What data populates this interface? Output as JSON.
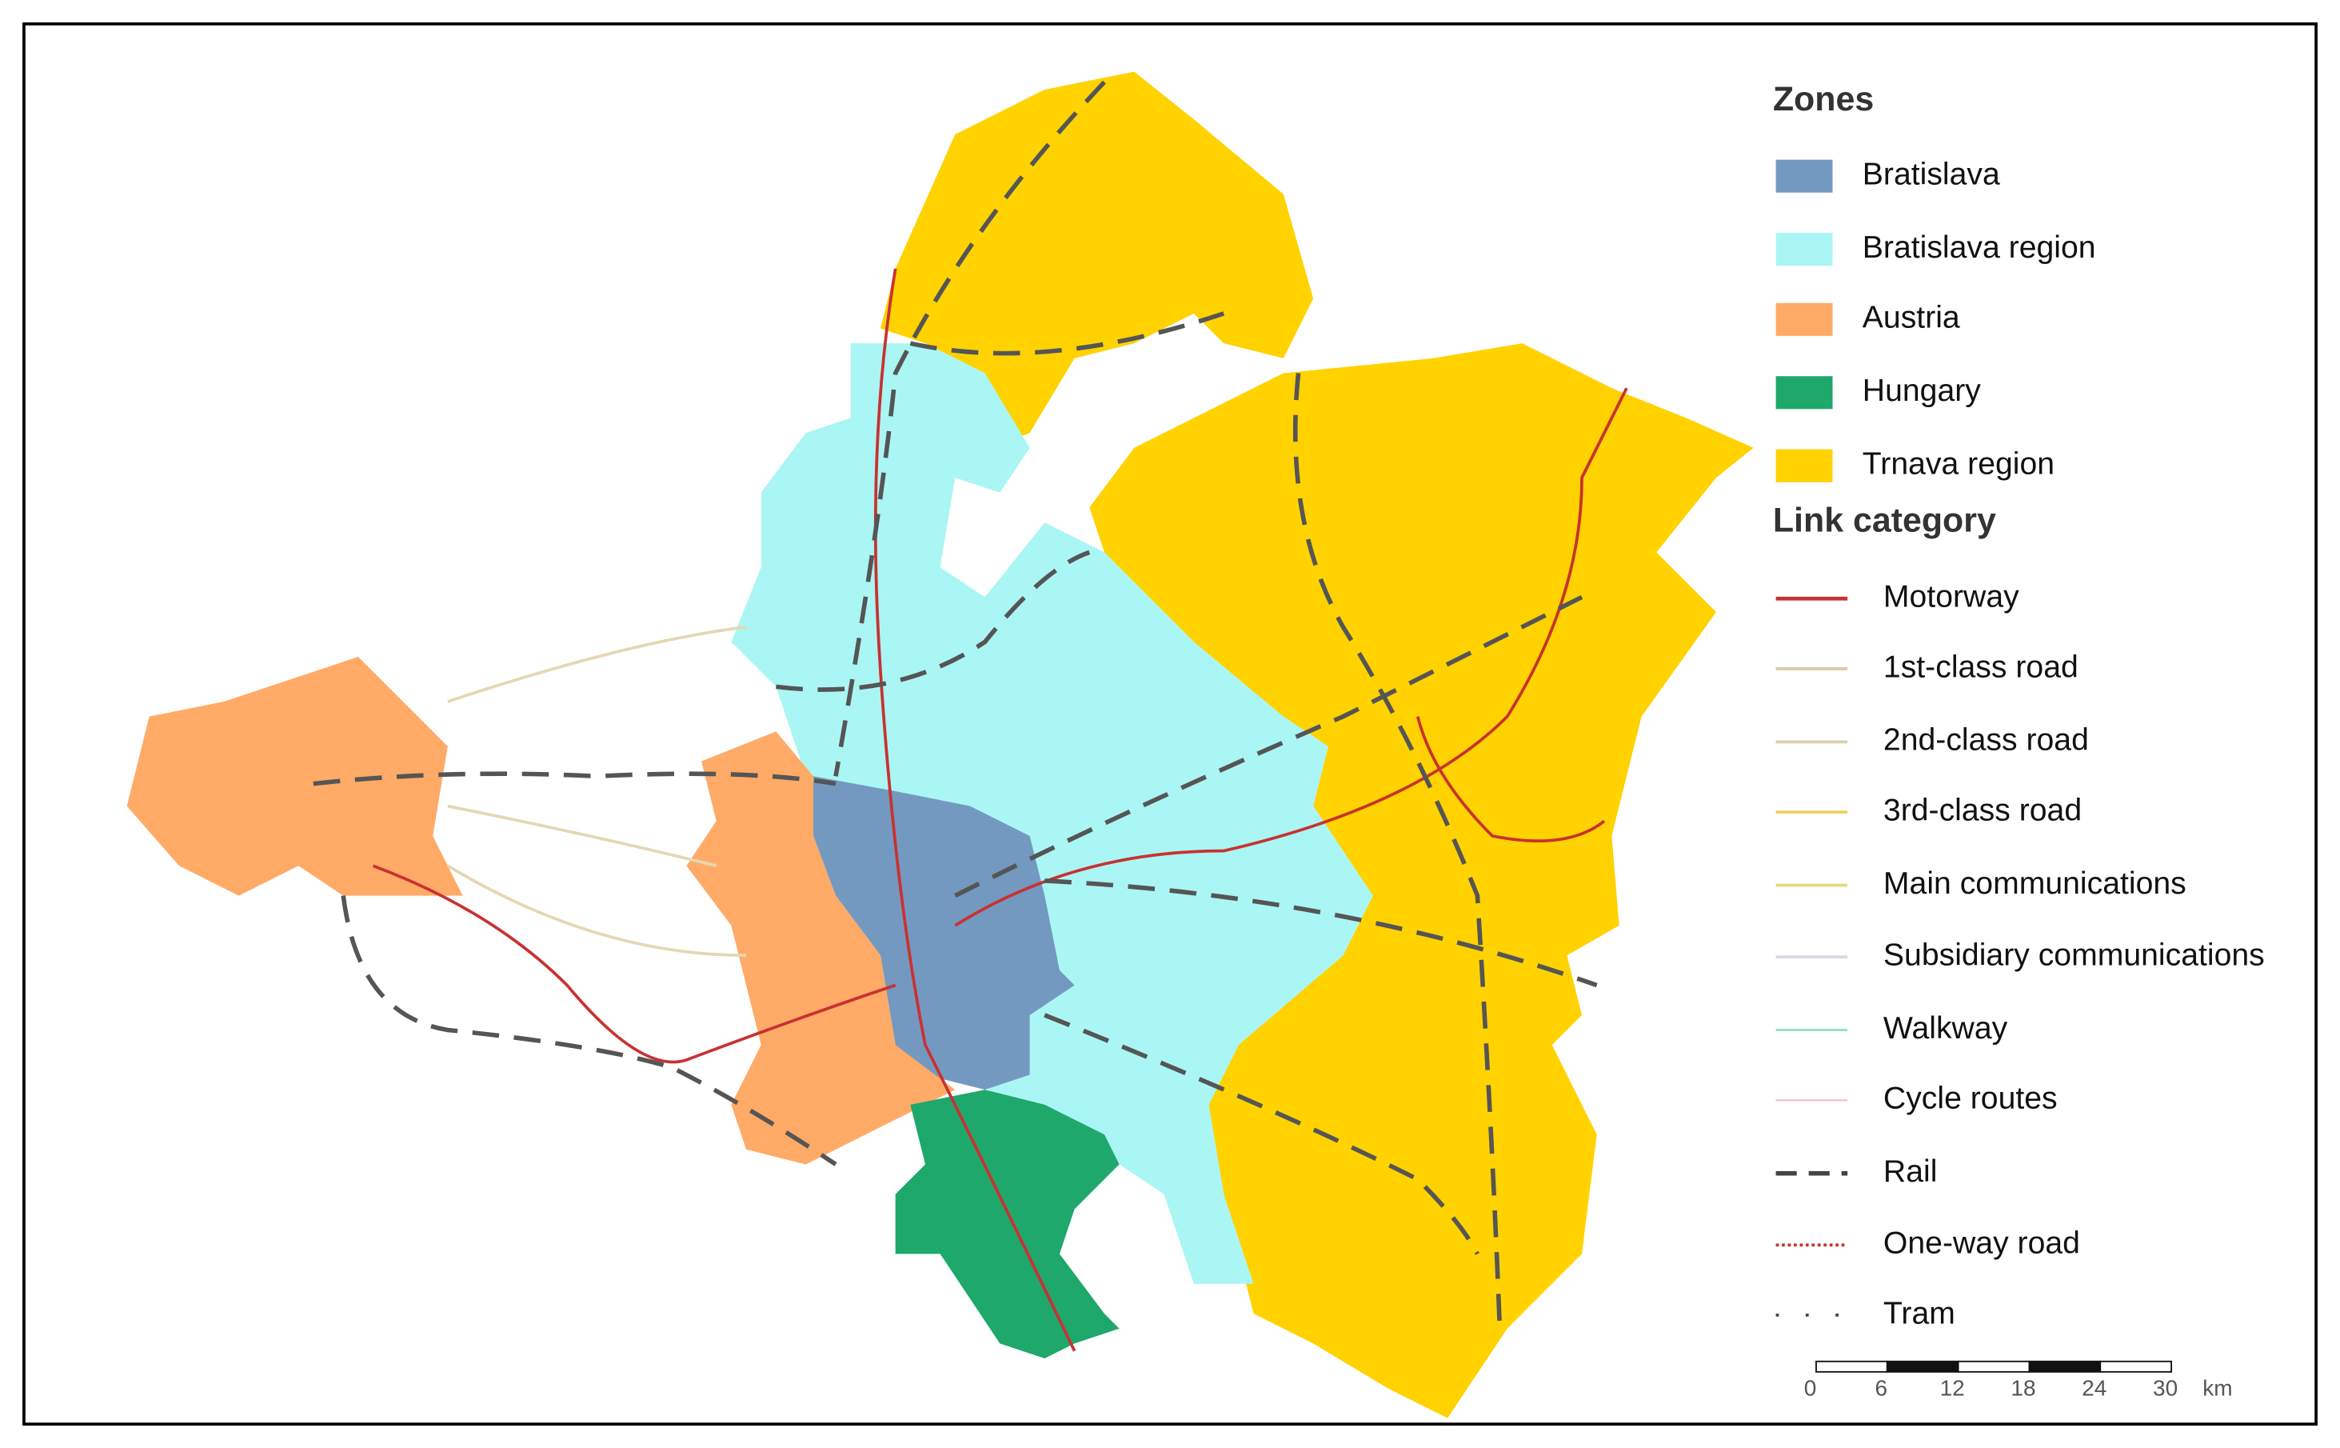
{
  "legend": {
    "zones_title": "Zones",
    "zones": [
      {
        "label": "Bratislava",
        "color": "#7499c0"
      },
      {
        "label": "Bratislava region",
        "color": "#aaf6f4"
      },
      {
        "label": "Austria",
        "color": "#ffaa66"
      },
      {
        "label": "Hungary",
        "color": "#1fa86c"
      },
      {
        "label": "Trnava region",
        "color": "#ffd200"
      }
    ],
    "links_title": "Link category",
    "links": [
      "Motorway",
      "1st-class road",
      "2nd-class road",
      "3rd-class road",
      "Main communications",
      "Subsidiary communications",
      "Walkway",
      "Cycle routes",
      "Rail",
      "One-way road",
      "Tram"
    ]
  },
  "scale_bar": {
    "ticks": [
      0,
      6,
      12,
      18,
      24,
      30
    ],
    "unit": "km"
  }
}
